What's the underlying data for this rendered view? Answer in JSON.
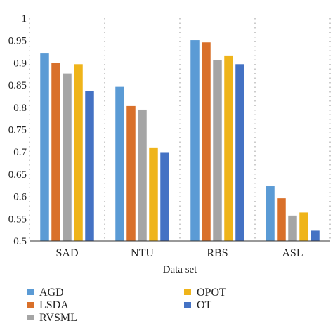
{
  "chart_data": {
    "type": "bar",
    "categories": [
      "SAD",
      "NTU",
      "RBS",
      "ASL"
    ],
    "xlabel": "Data set",
    "ylabel": "",
    "ylim": [
      0.5,
      1
    ],
    "yticks": [
      "0.5",
      "0.55",
      "0.6",
      "0.65",
      "0.7",
      "0.75",
      "0.8",
      "0.85",
      "0.9",
      "0.95",
      "1"
    ],
    "grid": "vertical dotted",
    "legend_position": "bottom",
    "series": [
      {
        "name": "AGD",
        "color": "#5b9bd5",
        "values": [
          0.921,
          0.846,
          0.951,
          0.623
        ]
      },
      {
        "name": "LSDA",
        "color": "#d9702a",
        "values": [
          0.9,
          0.803,
          0.946,
          0.596
        ]
      },
      {
        "name": "RVSML",
        "color": "#a5a5a5",
        "values": [
          0.876,
          0.795,
          0.906,
          0.557
        ]
      },
      {
        "name": "OPOT",
        "color": "#efb41a",
        "values": [
          0.897,
          0.71,
          0.915,
          0.564
        ]
      },
      {
        "name": "OT",
        "color": "#4472c4",
        "values": [
          0.837,
          0.698,
          0.897,
          0.523
        ]
      }
    ]
  }
}
